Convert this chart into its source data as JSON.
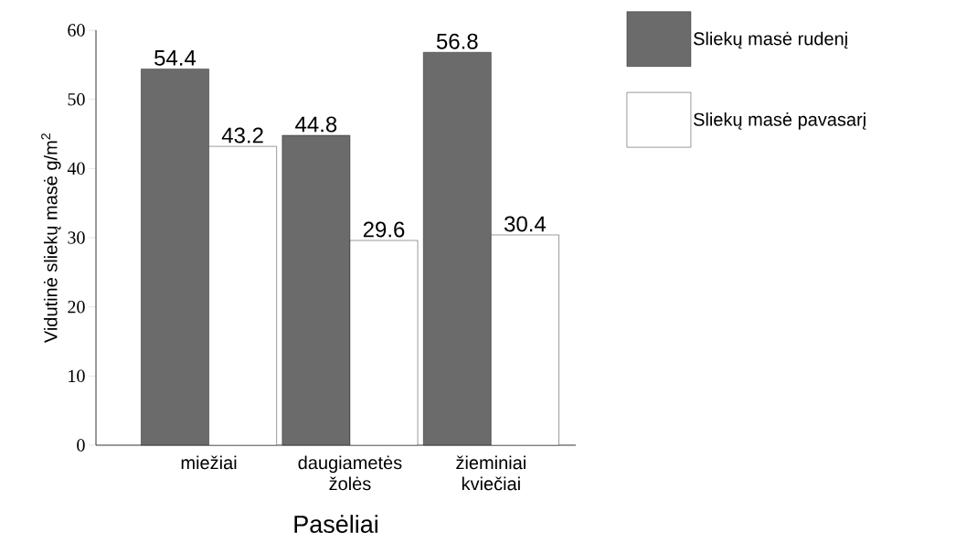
{
  "chart_data": {
    "type": "bar",
    "xlabel": "Pasėliai",
    "ylabel": "Vidutinė sliekų masė g/m$^{2}$",
    "categories": [
      "miežiai",
      "daugiametės žolės",
      "žieminiai kviečiai"
    ],
    "series": [
      {
        "name": "Sliekų masė rudenį",
        "color": "#6b6b6b",
        "values": [
          54.4,
          44.8,
          56.8
        ]
      },
      {
        "name": "Sliekų masė pavasarį",
        "color": "#ffffff",
        "values": [
          43.2,
          29.6,
          30.4
        ]
      }
    ],
    "ylim": [
      0,
      60
    ],
    "yticks": [
      0,
      10,
      20,
      30,
      40,
      50,
      60
    ],
    "data_labels": true,
    "legend": "top right"
  }
}
